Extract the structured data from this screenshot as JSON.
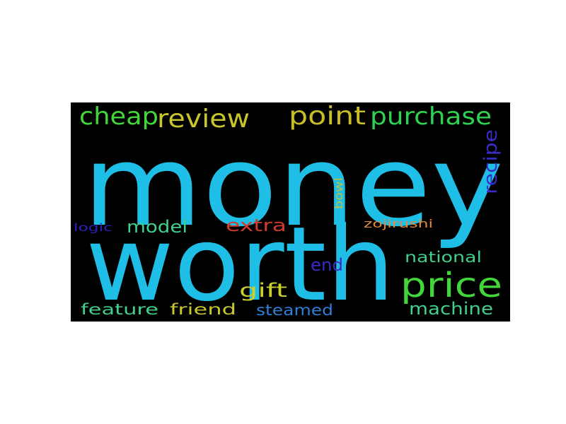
{
  "word_cloud": {
    "background": "#000000",
    "words": [
      {
        "id": "money",
        "text": "money",
        "color": "#1EBEE6"
      },
      {
        "id": "worth",
        "text": "worth",
        "color": "#1EBEE6"
      },
      {
        "id": "cheap",
        "text": "cheap",
        "color": "#43D63B"
      },
      {
        "id": "review",
        "text": "review",
        "color": "#C9C62C"
      },
      {
        "id": "point",
        "text": "point",
        "color": "#C9BD26"
      },
      {
        "id": "purchase",
        "text": "purchase",
        "color": "#2FD150"
      },
      {
        "id": "price",
        "text": "price",
        "color": "#43D63B"
      },
      {
        "id": "model",
        "text": "model",
        "color": "#3FD08B"
      },
      {
        "id": "extra",
        "text": "extra",
        "color": "#D23A2A"
      },
      {
        "id": "logic",
        "text": "logic",
        "color": "#2D1FC0"
      },
      {
        "id": "bowl",
        "text": "bowl",
        "color": "#C4C038"
      },
      {
        "id": "zojirushi",
        "text": "zojirushi",
        "color": "#E08A3B"
      },
      {
        "id": "recipe",
        "text": "recipe",
        "color": "#3A2BC8"
      },
      {
        "id": "national",
        "text": "national",
        "color": "#3FD08B"
      },
      {
        "id": "end",
        "text": "end",
        "color": "#3A2BC8"
      },
      {
        "id": "gift",
        "text": "gift",
        "color": "#C9D02C"
      },
      {
        "id": "feature",
        "text": "feature",
        "color": "#3FD08B"
      },
      {
        "id": "friend",
        "text": "friend",
        "color": "#C9C62C"
      },
      {
        "id": "steamed",
        "text": "steamed",
        "color": "#2E7FD6"
      },
      {
        "id": "machine",
        "text": "machine",
        "color": "#3FD08B"
      }
    ]
  }
}
